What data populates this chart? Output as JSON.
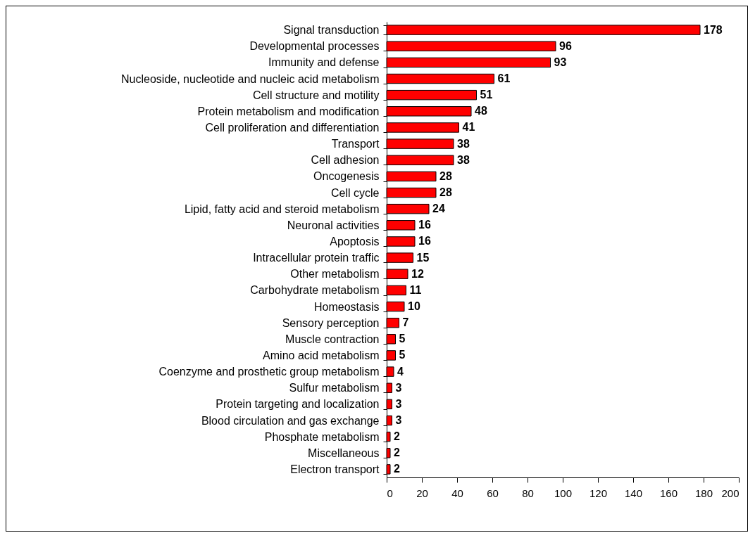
{
  "chart_data": {
    "type": "bar",
    "orientation": "horizontal",
    "categories": [
      "Signal transduction",
      "Developmental processes",
      "Immunity and defense",
      "Nucleoside, nucleotide and nucleic acid metabolism",
      "Cell structure and motility",
      "Protein metabolism and modification",
      "Cell proliferation and differentiation",
      "Transport",
      "Cell adhesion",
      "Oncogenesis",
      "Cell cycle",
      "Lipid, fatty acid and steroid metabolism",
      "Neuronal activities",
      "Apoptosis",
      "Intracellular protein traffic",
      "Other metabolism",
      "Carbohydrate metabolism",
      "Homeostasis",
      "Sensory perception",
      "Muscle contraction",
      "Amino acid metabolism",
      "Coenzyme and prosthetic group metabolism",
      "Sulfur metabolism",
      "Protein targeting and localization",
      "Blood circulation and gas exchange",
      "Phosphate metabolism",
      "Miscellaneous",
      "Electron transport"
    ],
    "values": [
      178,
      96,
      93,
      61,
      51,
      48,
      41,
      38,
      38,
      28,
      28,
      24,
      16,
      16,
      15,
      12,
      11,
      10,
      7,
      5,
      5,
      4,
      3,
      3,
      3,
      2,
      2,
      2
    ],
    "color": "#ff0000",
    "xlim": [
      0,
      200
    ],
    "xticks": [
      0,
      20,
      40,
      60,
      80,
      100,
      120,
      140,
      160,
      180,
      200
    ],
    "data_labels": true,
    "grid": false
  }
}
